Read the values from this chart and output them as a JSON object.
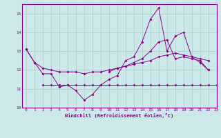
{
  "xlabel": "Windchill (Refroidissement éolien,°C)",
  "bg_color": "#cce8e8",
  "line_color": "#880088",
  "xlim": [
    -0.5,
    23
  ],
  "ylim": [
    10,
    15.5
  ],
  "yticks": [
    10,
    11,
    12,
    13,
    14,
    15
  ],
  "xticks": [
    0,
    1,
    2,
    3,
    4,
    5,
    6,
    7,
    8,
    9,
    10,
    11,
    12,
    13,
    14,
    15,
    16,
    17,
    18,
    19,
    20,
    21,
    22,
    23
  ],
  "hours": [
    0,
    1,
    2,
    3,
    4,
    5,
    6,
    7,
    8,
    9,
    10,
    11,
    12,
    13,
    14,
    15,
    16,
    17,
    18,
    19,
    20,
    21,
    22,
    23
  ],
  "line1": [
    13.1,
    12.4,
    11.8,
    11.8,
    11.1,
    11.2,
    10.9,
    10.4,
    10.7,
    11.2,
    11.5,
    11.7,
    12.5,
    12.7,
    13.5,
    14.7,
    15.3,
    13.0,
    13.8,
    14.0,
    12.7,
    12.4,
    12.0,
    null
  ],
  "line2": [
    null,
    null,
    11.2,
    11.2,
    11.2,
    11.2,
    11.2,
    11.2,
    11.2,
    11.2,
    11.2,
    11.2,
    11.2,
    11.2,
    11.2,
    11.2,
    11.2,
    11.2,
    11.2,
    11.2,
    11.2,
    11.2,
    11.2,
    11.2
  ],
  "line3": [
    null,
    null,
    null,
    null,
    null,
    null,
    null,
    null,
    null,
    null,
    11.9,
    12.1,
    12.2,
    12.4,
    12.6,
    13.0,
    13.5,
    13.6,
    12.6,
    12.7,
    12.6,
    12.5,
    12.0,
    null
  ],
  "line4": [
    13.1,
    12.4,
    12.1,
    12.0,
    11.9,
    11.9,
    11.9,
    11.8,
    11.9,
    11.9,
    12.0,
    12.1,
    12.2,
    12.3,
    12.4,
    12.5,
    12.7,
    12.8,
    12.9,
    12.8,
    12.7,
    12.6,
    12.5,
    null
  ]
}
